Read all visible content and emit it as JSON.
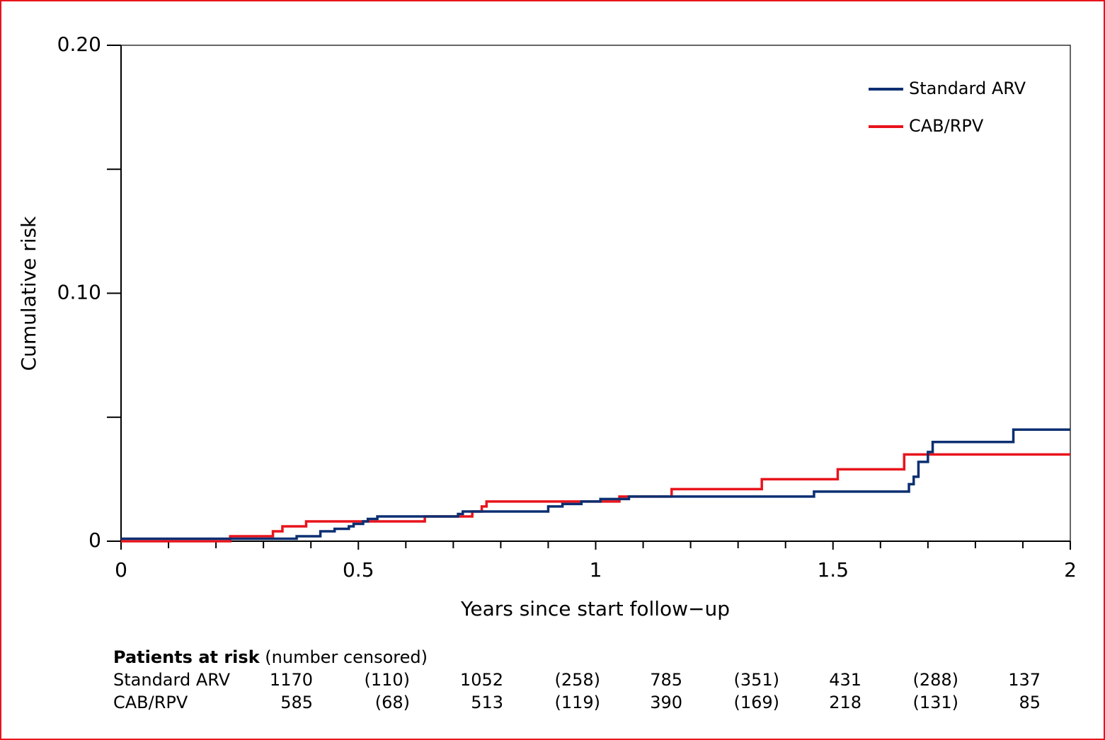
{
  "chart_data": {
    "type": "line",
    "subtype": "kaplan-meier-cumulative-risk",
    "title": "",
    "xlabel": "Years since start follow−up",
    "ylabel": "Cumulative risk",
    "xlim": [
      0,
      2
    ],
    "ylim": [
      0,
      0.2
    ],
    "x_ticks": [
      0,
      0.5,
      1,
      1.5,
      2
    ],
    "x_tick_labels": [
      "0",
      "0.5",
      "1",
      "1.5",
      "2"
    ],
    "x_minor_step": 0.1,
    "y_ticks": [
      0,
      0.05,
      0.1,
      0.15,
      0.2
    ],
    "y_tick_labels": [
      "0",
      "",
      "0.10",
      "",
      "0.20"
    ],
    "grid": false,
    "legend_position": "top-right",
    "series": [
      {
        "name": "Standard ARV",
        "color": "#0b2f72",
        "steps": [
          [
            0,
            0.001
          ],
          [
            0.37,
            0.002
          ],
          [
            0.42,
            0.004
          ],
          [
            0.45,
            0.005
          ],
          [
            0.48,
            0.006
          ],
          [
            0.49,
            0.007
          ],
          [
            0.51,
            0.008
          ],
          [
            0.52,
            0.009
          ],
          [
            0.54,
            0.01
          ],
          [
            0.71,
            0.011
          ],
          [
            0.72,
            0.012
          ],
          [
            0.9,
            0.014
          ],
          [
            0.93,
            0.015
          ],
          [
            0.97,
            0.016
          ],
          [
            1.01,
            0.017
          ],
          [
            1.07,
            0.018
          ],
          [
            1.46,
            0.02
          ],
          [
            1.66,
            0.023
          ],
          [
            1.67,
            0.026
          ],
          [
            1.68,
            0.032
          ],
          [
            1.7,
            0.036
          ],
          [
            1.71,
            0.04
          ],
          [
            1.88,
            0.045
          ],
          [
            2.0,
            0.045
          ]
        ]
      },
      {
        "name": "CAB/RPV",
        "color": "#e8141c",
        "steps": [
          [
            0,
            0.0
          ],
          [
            0.23,
            0.002
          ],
          [
            0.32,
            0.004
          ],
          [
            0.34,
            0.006
          ],
          [
            0.39,
            0.008
          ],
          [
            0.64,
            0.01
          ],
          [
            0.74,
            0.012
          ],
          [
            0.76,
            0.014
          ],
          [
            0.77,
            0.016
          ],
          [
            1.05,
            0.018
          ],
          [
            1.16,
            0.021
          ],
          [
            1.35,
            0.025
          ],
          [
            1.51,
            0.029
          ],
          [
            1.65,
            0.035
          ],
          [
            2.0,
            0.035
          ]
        ]
      }
    ]
  },
  "risk_table": {
    "heading_bold": "Patients at risk",
    "heading_rest": " (number censored)",
    "rows": [
      {
        "label": "Standard ARV",
        "values": [
          "1170",
          "(110)",
          "1052",
          "(258)",
          "785",
          "(351)",
          "431",
          "(288)",
          "137"
        ]
      },
      {
        "label": "CAB/RPV",
        "values": [
          "585",
          "(68)",
          "513",
          "(119)",
          "390",
          "(169)",
          "218",
          "(131)",
          "85"
        ]
      }
    ]
  }
}
